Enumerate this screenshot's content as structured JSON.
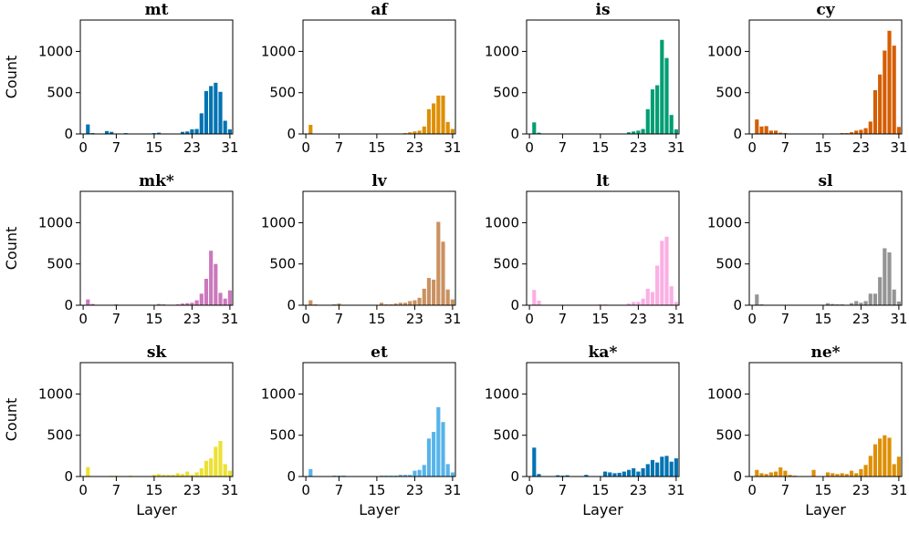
{
  "chart_data": {
    "type": "bar",
    "xlabel": "Layer",
    "ylabel": "Count",
    "xticks": [
      0,
      7,
      15,
      23,
      31
    ],
    "yticks": [
      0,
      500,
      1000
    ],
    "xlim": [
      -0.6,
      31.6
    ],
    "ylim": [
      0,
      1380
    ],
    "layers": [
      0,
      1,
      2,
      3,
      4,
      5,
      6,
      7,
      8,
      9,
      10,
      11,
      12,
      13,
      14,
      15,
      16,
      17,
      18,
      19,
      20,
      21,
      22,
      23,
      24,
      25,
      26,
      27,
      28,
      29,
      30,
      31
    ],
    "panels": [
      {
        "title": "mt",
        "color": "#0173b2",
        "values": [
          0,
          115,
          10,
          0,
          0,
          35,
          25,
          0,
          0,
          10,
          0,
          0,
          0,
          0,
          0,
          10,
          15,
          0,
          0,
          0,
          0,
          25,
          30,
          55,
          60,
          250,
          520,
          580,
          620,
          510,
          160,
          55
        ]
      },
      {
        "title": "af",
        "color": "#de8f05",
        "values": [
          0,
          110,
          0,
          0,
          0,
          0,
          0,
          0,
          0,
          0,
          0,
          0,
          0,
          0,
          0,
          0,
          0,
          0,
          0,
          0,
          0,
          10,
          20,
          30,
          40,
          90,
          300,
          370,
          465,
          465,
          145,
          60
        ]
      },
      {
        "title": "is",
        "color": "#029e73",
        "values": [
          0,
          140,
          15,
          0,
          0,
          0,
          0,
          0,
          5,
          0,
          0,
          0,
          0,
          0,
          0,
          0,
          0,
          0,
          0,
          0,
          0,
          20,
          30,
          40,
          60,
          300,
          540,
          590,
          1140,
          920,
          230,
          55
        ]
      },
      {
        "title": "cy",
        "color": "#d55e00",
        "values": [
          0,
          175,
          90,
          95,
          40,
          40,
          15,
          10,
          5,
          0,
          0,
          0,
          0,
          0,
          0,
          0,
          0,
          0,
          0,
          10,
          10,
          20,
          40,
          50,
          70,
          150,
          530,
          720,
          1010,
          1250,
          1070,
          85
        ]
      },
      {
        "title": "mk*",
        "color": "#cc78bc",
        "values": [
          0,
          70,
          15,
          0,
          0,
          0,
          0,
          10,
          0,
          0,
          0,
          0,
          0,
          0,
          0,
          5,
          15,
          10,
          0,
          0,
          10,
          20,
          25,
          30,
          60,
          140,
          320,
          660,
          500,
          150,
          80,
          180
        ]
      },
      {
        "title": "lv",
        "color": "#ca9161",
        "values": [
          0,
          60,
          10,
          0,
          0,
          0,
          10,
          20,
          0,
          0,
          0,
          0,
          0,
          0,
          0,
          0,
          30,
          10,
          10,
          20,
          30,
          30,
          50,
          60,
          90,
          200,
          330,
          310,
          1010,
          770,
          190,
          70
        ]
      },
      {
        "title": "lt",
        "color": "#fbafe4",
        "values": [
          0,
          185,
          55,
          0,
          0,
          0,
          0,
          0,
          0,
          0,
          0,
          0,
          0,
          0,
          0,
          10,
          10,
          0,
          0,
          0,
          0,
          20,
          40,
          40,
          80,
          200,
          160,
          480,
          780,
          830,
          230,
          40
        ]
      },
      {
        "title": "sl",
        "color": "#949494",
        "values": [
          0,
          130,
          10,
          0,
          0,
          0,
          0,
          0,
          0,
          0,
          0,
          0,
          0,
          0,
          0,
          0,
          25,
          15,
          10,
          10,
          0,
          25,
          50,
          30,
          50,
          140,
          140,
          340,
          690,
          640,
          190,
          45
        ]
      },
      {
        "title": "sk",
        "color": "#ece133",
        "values": [
          0,
          115,
          0,
          0,
          0,
          0,
          10,
          10,
          0,
          0,
          10,
          0,
          0,
          0,
          0,
          20,
          30,
          20,
          20,
          20,
          40,
          30,
          60,
          20,
          50,
          100,
          190,
          220,
          360,
          430,
          150,
          70
        ]
      },
      {
        "title": "et",
        "color": "#56b4e9",
        "values": [
          0,
          90,
          0,
          0,
          0,
          0,
          10,
          10,
          10,
          0,
          0,
          0,
          5,
          0,
          0,
          0,
          10,
          10,
          10,
          10,
          20,
          20,
          20,
          70,
          80,
          140,
          460,
          540,
          840,
          660,
          150,
          50
        ]
      },
      {
        "title": "ka*",
        "color": "#0173b2",
        "values": [
          0,
          350,
          30,
          0,
          0,
          0,
          15,
          10,
          15,
          0,
          0,
          0,
          20,
          0,
          0,
          0,
          60,
          50,
          40,
          45,
          60,
          80,
          100,
          60,
          100,
          150,
          200,
          170,
          240,
          250,
          180,
          220
        ]
      },
      {
        "title": "ne*",
        "color": "#de8f05",
        "values": [
          0,
          80,
          40,
          30,
          50,
          60,
          110,
          70,
          20,
          10,
          0,
          0,
          0,
          80,
          0,
          0,
          50,
          40,
          30,
          40,
          30,
          70,
          40,
          90,
          140,
          250,
          390,
          460,
          500,
          470,
          150,
          240
        ]
      }
    ]
  }
}
